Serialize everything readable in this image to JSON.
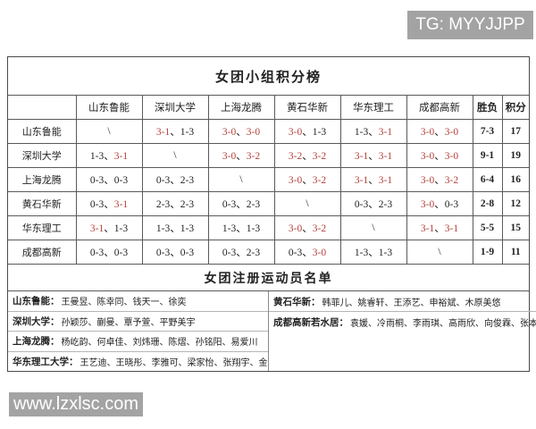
{
  "watermarks": {
    "tg_badge": "TG: MYYJJPP",
    "site_badge": "www.lzxlsc.com"
  },
  "colors": {
    "result_win_red": "#b5423c",
    "badge_gray": "#a3a3a3",
    "grid_line": "#5a5a5a"
  },
  "standings": {
    "title": "女团小组积分榜",
    "slash": "\\",
    "columns": [
      "",
      "山东鲁能",
      "深圳大学",
      "上海龙腾",
      "黄石华新",
      "华东理工",
      "成都高新",
      "胜负",
      "积分"
    ],
    "rows": [
      {
        "team": "山东鲁能",
        "cells": [
          null,
          [
            [
              "3-1",
              1
            ],
            [
              "1-3",
              0
            ]
          ],
          [
            [
              "3-0",
              1
            ],
            [
              "3-0",
              1
            ]
          ],
          [
            [
              "3-0",
              1
            ],
            [
              "1-3",
              0
            ]
          ],
          [
            [
              "1-3",
              0
            ],
            [
              "3-1",
              1
            ]
          ],
          [
            [
              "3-0",
              1
            ],
            [
              "3-0",
              1
            ]
          ]
        ],
        "record": "7-3",
        "points": "17"
      },
      {
        "team": "深圳大学",
        "cells": [
          [
            [
              "1-3",
              0
            ],
            [
              "3-1",
              1
            ]
          ],
          null,
          [
            [
              "3-0",
              1
            ],
            [
              "3-2",
              1
            ]
          ],
          [
            [
              "3-2",
              1
            ],
            [
              "3-2",
              1
            ]
          ],
          [
            [
              "3-1",
              1
            ],
            [
              "3-1",
              1
            ]
          ],
          [
            [
              "3-0",
              1
            ],
            [
              "3-0",
              1
            ]
          ]
        ],
        "record": "9-1",
        "points": "19"
      },
      {
        "team": "上海龙腾",
        "cells": [
          [
            [
              "0-3",
              0
            ],
            [
              "0-3",
              0
            ]
          ],
          [
            [
              "0-3",
              0
            ],
            [
              "2-3",
              0
            ]
          ],
          null,
          [
            [
              "3-0",
              1
            ],
            [
              "3-2",
              1
            ]
          ],
          [
            [
              "3-1",
              1
            ],
            [
              "3-1",
              1
            ]
          ],
          [
            [
              "3-0",
              1
            ],
            [
              "3-2",
              1
            ]
          ]
        ],
        "record": "6-4",
        "points": "16"
      },
      {
        "team": "黄石华新",
        "cells": [
          [
            [
              "0-3",
              0
            ],
            [
              "3-1",
              1
            ]
          ],
          [
            [
              "2-3",
              0
            ],
            [
              "2-3",
              0
            ]
          ],
          [
            [
              "0-3",
              0
            ],
            [
              "2-3",
              0
            ]
          ],
          null,
          [
            [
              "0-3",
              0
            ],
            [
              "2-3",
              0
            ]
          ],
          [
            [
              "3-0",
              1
            ],
            [
              "0-3",
              0
            ]
          ]
        ],
        "record": "2-8",
        "points": "12"
      },
      {
        "team": "华东理工",
        "cells": [
          [
            [
              "3-1",
              1
            ],
            [
              "1-3",
              0
            ]
          ],
          [
            [
              "1-3",
              0
            ],
            [
              "1-3",
              0
            ]
          ],
          [
            [
              "1-3",
              0
            ],
            [
              "1-3",
              0
            ]
          ],
          [
            [
              "3-0",
              1
            ],
            [
              "3-2",
              1
            ]
          ],
          null,
          [
            [
              "3-1",
              1
            ],
            [
              "3-1",
              1
            ]
          ]
        ],
        "record": "5-5",
        "points": "15"
      },
      {
        "team": "成都高新",
        "cells": [
          [
            [
              "0-3",
              0
            ],
            [
              "0-3",
              0
            ]
          ],
          [
            [
              "0-3",
              0
            ],
            [
              "0-3",
              0
            ]
          ],
          [
            [
              "0-3",
              0
            ],
            [
              "2-3",
              0
            ]
          ],
          [
            [
              "0-3",
              0
            ],
            [
              "3-0",
              1
            ]
          ],
          [
            [
              "1-3",
              0
            ],
            [
              "1-3",
              0
            ]
          ],
          null
        ],
        "record": "1-9",
        "points": "11"
      }
    ]
  },
  "roster": {
    "title": "女团注册运动员名单",
    "separator": "、",
    "left": [
      {
        "team": "山东鲁能：",
        "players": "王曼昱、陈幸同、钱天一、徐奕"
      },
      {
        "team": "深圳大学：",
        "players": "孙颖莎、蒯曼、覃予萱、平野美宇"
      },
      {
        "team": "上海龙腾：",
        "players": "杨屹韵、何卓佳、刘炜珊、陈熠、孙铭阳、易爱川"
      },
      {
        "team": "华东理工大学：",
        "players": "王艺迪、王晓彤、李雅可、梁家怡、张翔宇、金梦妍"
      }
    ],
    "right": [
      {
        "team": "黄石华新：",
        "players": "韩菲儿、姚睿轩、王添艺、申裕斌、木原美悠"
      },
      {
        "team": "成都高新若水居：",
        "players": "袁媛、冷雨桐、李雨琪、高雨欣、向俊霖、张本美和"
      }
    ]
  }
}
